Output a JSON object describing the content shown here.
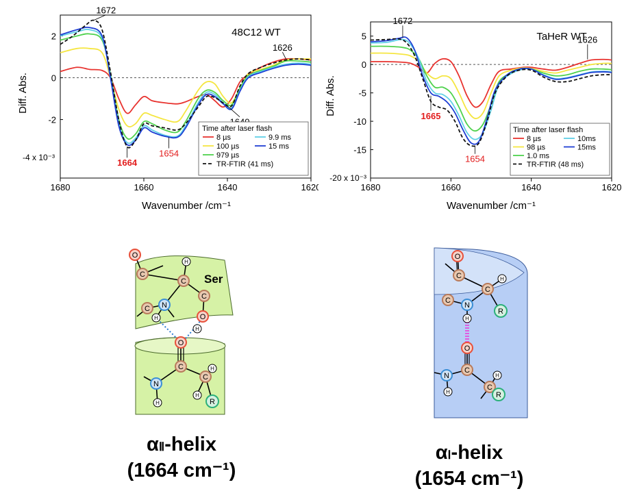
{
  "chart_data": [
    {
      "type": "line",
      "title": "48C12 WT",
      "xlabel": "Wavenumber /cm⁻¹",
      "ylabel": "Diff. Abs.",
      "xlim": [
        1680,
        1620
      ],
      "ylim": [
        -4.8,
        3.0
      ],
      "x_ticks": [
        1680,
        1660,
        1640,
        1620
      ],
      "y_ticks": [
        2,
        0,
        -2
      ],
      "y_tick_labels": [
        "2",
        "0",
        "-2"
      ],
      "y_scale_label": "-4 x 10⁻³",
      "zero_line": true,
      "legend_title": "Time after laser flash",
      "series": [
        {
          "name": "8 µs",
          "color": "#e8332f",
          "dash": "",
          "x": [
            1680,
            1676,
            1673,
            1670,
            1668,
            1666,
            1664,
            1662,
            1660,
            1658,
            1655,
            1652,
            1650,
            1647,
            1645,
            1643,
            1641,
            1639,
            1637,
            1635,
            1632,
            1629,
            1626,
            1623,
            1620
          ],
          "y": [
            0.3,
            0.5,
            0.4,
            0.35,
            0.0,
            -1.0,
            -1.7,
            -1.3,
            -0.9,
            -1.1,
            -1.2,
            -1.25,
            -1.15,
            -0.9,
            -0.8,
            -1.1,
            -1.4,
            -1.0,
            -0.2,
            0.15,
            0.5,
            0.75,
            0.9,
            0.9,
            0.85
          ]
        },
        {
          "name": "100 µs",
          "color": "#f5e641",
          "dash": "",
          "x": [
            1680,
            1676,
            1673,
            1670,
            1668,
            1666,
            1664,
            1662,
            1660,
            1658,
            1655,
            1652,
            1650,
            1647,
            1645,
            1643,
            1641,
            1639,
            1637,
            1635,
            1632,
            1629,
            1626,
            1623,
            1620
          ],
          "y": [
            1.2,
            1.4,
            1.4,
            1.2,
            0.0,
            -1.5,
            -2.3,
            -2.2,
            -1.7,
            -1.8,
            -2.0,
            -2.1,
            -1.6,
            -0.6,
            -0.2,
            -0.3,
            -0.9,
            -1.2,
            -0.5,
            0.2,
            0.4,
            0.6,
            0.85,
            0.9,
            0.9
          ]
        },
        {
          "name": "979 µs",
          "color": "#4fd24d",
          "dash": "",
          "x": [
            1680,
            1676,
            1673,
            1670,
            1668,
            1666,
            1664,
            1662,
            1660,
            1658,
            1655,
            1652,
            1650,
            1647,
            1645,
            1643,
            1641,
            1639,
            1637,
            1635,
            1632,
            1629,
            1626,
            1623,
            1620
          ],
          "y": [
            1.8,
            2.0,
            2.1,
            1.8,
            0.2,
            -2.0,
            -2.9,
            -2.7,
            -2.1,
            -2.2,
            -2.5,
            -2.6,
            -2.1,
            -1.0,
            -0.6,
            -0.7,
            -1.1,
            -1.3,
            -0.5,
            0.1,
            0.35,
            0.55,
            0.8,
            0.8,
            0.75
          ]
        },
        {
          "name": "9.9 ms",
          "color": "#5fd0e6",
          "dash": "",
          "x": [
            1680,
            1676,
            1673,
            1670,
            1668,
            1666,
            1664,
            1662,
            1660,
            1658,
            1655,
            1652,
            1650,
            1647,
            1645,
            1643,
            1641,
            1639,
            1637,
            1635,
            1632,
            1629,
            1626,
            1623,
            1620
          ],
          "y": [
            2.0,
            2.2,
            2.3,
            1.9,
            0.1,
            -2.2,
            -3.1,
            -2.9,
            -2.3,
            -2.5,
            -2.75,
            -2.8,
            -2.3,
            -1.2,
            -0.7,
            -0.8,
            -1.2,
            -1.45,
            -0.6,
            0.05,
            0.3,
            0.5,
            0.65,
            0.7,
            0.65
          ]
        },
        {
          "name": "15 ms",
          "color": "#1f3fd4",
          "dash": "",
          "x": [
            1680,
            1676,
            1673,
            1670,
            1668,
            1666,
            1664,
            1662,
            1660,
            1658,
            1655,
            1652,
            1650,
            1647,
            1645,
            1643,
            1641,
            1639,
            1637,
            1635,
            1632,
            1629,
            1626,
            1623,
            1620
          ],
          "y": [
            2.05,
            2.3,
            2.4,
            2.0,
            0.0,
            -2.3,
            -3.2,
            -3.0,
            -2.4,
            -2.6,
            -2.8,
            -2.85,
            -2.4,
            -1.3,
            -0.8,
            -0.9,
            -1.25,
            -1.5,
            -0.65,
            0.0,
            0.25,
            0.45,
            0.6,
            0.65,
            0.6
          ]
        },
        {
          "name": "TR-FTIR (41 ms)",
          "color": "#111111",
          "dash": "5,3",
          "x": [
            1680,
            1677,
            1674,
            1672,
            1670,
            1668,
            1666,
            1664,
            1662,
            1660,
            1658,
            1655,
            1652,
            1650,
            1647,
            1645,
            1643,
            1641,
            1639,
            1637,
            1635,
            1632,
            1629,
            1626,
            1623,
            1620
          ],
          "y": [
            1.6,
            2.0,
            2.5,
            2.75,
            2.3,
            0.3,
            -2.0,
            -3.3,
            -3.0,
            -2.2,
            -2.3,
            -2.4,
            -2.5,
            -2.2,
            -1.4,
            -0.9,
            -0.95,
            -1.2,
            -1.35,
            -0.4,
            0.2,
            0.5,
            0.7,
            0.85,
            0.9,
            0.85
          ]
        }
      ],
      "annotations": [
        {
          "text": "1672",
          "x": 1672,
          "y": 2.75,
          "color": "#000000",
          "bold": false
        },
        {
          "text": "1626",
          "x": 1626,
          "y": 0.9,
          "color": "#000000",
          "bold": false
        },
        {
          "text": "1640",
          "x": 1640,
          "y": -1.35,
          "color": "#000000",
          "bold": false
        },
        {
          "text": "1664",
          "x": 1664,
          "y": -3.3,
          "color": "#e21c1c",
          "bold": true
        },
        {
          "text": "1654",
          "x": 1654,
          "y": -2.85,
          "color": "#e21c1c",
          "bold": false
        }
      ]
    },
    {
      "type": "line",
      "title": "TaHeR WT",
      "xlabel": "Wavenumber /cm⁻¹",
      "ylabel": "Diff. Abs.",
      "xlim": [
        1680,
        1620
      ],
      "ylim": [
        -20,
        7.5
      ],
      "x_ticks": [
        1680,
        1660,
        1640,
        1620
      ],
      "y_ticks": [
        5,
        0,
        -5,
        -10,
        -15
      ],
      "y_tick_labels": [
        "5",
        "0",
        "-5",
        "-10",
        "-15"
      ],
      "y_scale_label": "-20 x 10⁻³",
      "zero_line": true,
      "legend_title": "Time after laser flash",
      "series": [
        {
          "name": "8 µs",
          "color": "#e8332f",
          "dash": "",
          "x": [
            1680,
            1676,
            1672,
            1670,
            1668,
            1666,
            1664,
            1662,
            1660,
            1658,
            1656,
            1654,
            1652,
            1650,
            1648,
            1645,
            1642,
            1640,
            1637,
            1634,
            1631,
            1628,
            1625,
            1622,
            1620
          ],
          "y": [
            0.5,
            0.5,
            0.4,
            0.2,
            -0.5,
            -1.5,
            0.2,
            1.0,
            0.5,
            -2.0,
            -5.5,
            -7.5,
            -6.5,
            -3.5,
            -1.2,
            -0.8,
            -0.5,
            -0.5,
            -0.8,
            -1.0,
            -0.5,
            0.2,
            0.8,
            0.9,
            0.8
          ]
        },
        {
          "name": "98 µs",
          "color": "#f5e641",
          "dash": "",
          "x": [
            1680,
            1676,
            1672,
            1670,
            1668,
            1666,
            1664,
            1662,
            1660,
            1658,
            1656,
            1654,
            1652,
            1650,
            1648,
            1645,
            1642,
            1640,
            1637,
            1634,
            1631,
            1628,
            1625,
            1622,
            1620
          ],
          "y": [
            2.0,
            2.0,
            1.8,
            1.5,
            0.5,
            -1.5,
            -2.5,
            -2.0,
            -2.5,
            -5.0,
            -8.0,
            -9.5,
            -8.5,
            -5.0,
            -2.0,
            -1.0,
            -0.6,
            -0.7,
            -1.2,
            -1.5,
            -1.0,
            -0.5,
            0.0,
            0.2,
            0.2
          ]
        },
        {
          "name": "1.0 ms",
          "color": "#4fd24d",
          "dash": "",
          "x": [
            1680,
            1676,
            1672,
            1670,
            1668,
            1666,
            1664,
            1662,
            1660,
            1658,
            1656,
            1654,
            1652,
            1650,
            1648,
            1645,
            1642,
            1640,
            1637,
            1634,
            1631,
            1628,
            1625,
            1622,
            1620
          ],
          "y": [
            3.2,
            3.2,
            3.0,
            2.5,
            1.0,
            -2.0,
            -4.0,
            -4.0,
            -5.0,
            -7.5,
            -10.5,
            -11.7,
            -10.5,
            -7.0,
            -3.0,
            -1.5,
            -0.8,
            -0.8,
            -1.5,
            -2.0,
            -1.8,
            -1.2,
            -0.8,
            -0.8,
            -0.9
          ]
        },
        {
          "name": "10ms",
          "color": "#5fd0e6",
          "dash": "",
          "x": [
            1680,
            1676,
            1672,
            1670,
            1668,
            1666,
            1664,
            1662,
            1660,
            1658,
            1656,
            1654,
            1652,
            1650,
            1648,
            1645,
            1642,
            1640,
            1637,
            1634,
            1631,
            1628,
            1625,
            1622,
            1620
          ],
          "y": [
            3.8,
            3.9,
            4.4,
            3.5,
            1.0,
            -3.0,
            -5.0,
            -5.3,
            -6.5,
            -9.0,
            -12.0,
            -13.2,
            -12.0,
            -8.0,
            -3.5,
            -1.6,
            -0.8,
            -0.8,
            -1.8,
            -2.5,
            -2.3,
            -1.8,
            -1.3,
            -1.2,
            -1.3
          ]
        },
        {
          "name": "15ms",
          "color": "#1f3fd4",
          "dash": "",
          "x": [
            1680,
            1676,
            1673,
            1671,
            1669,
            1667,
            1665,
            1663,
            1661,
            1659,
            1657,
            1655,
            1653,
            1651,
            1649,
            1646,
            1643,
            1640,
            1637,
            1634,
            1631,
            1628,
            1625,
            1622,
            1620
          ],
          "y": [
            4.0,
            4.2,
            4.6,
            4.7,
            2.5,
            -2.0,
            -5.0,
            -5.6,
            -6.6,
            -8.5,
            -11.5,
            -13.8,
            -13.5,
            -9.5,
            -4.5,
            -1.8,
            -0.8,
            -0.8,
            -1.9,
            -2.6,
            -2.4,
            -1.9,
            -1.4,
            -1.3,
            -1.4
          ]
        },
        {
          "name": "TR-FTIR (48 ms)",
          "color": "#111111",
          "dash": "5,3",
          "x": [
            1680,
            1676,
            1673,
            1671,
            1669,
            1667,
            1665,
            1663,
            1661,
            1659,
            1657,
            1655,
            1653,
            1651,
            1649,
            1646,
            1643,
            1640,
            1637,
            1634,
            1631,
            1628,
            1625,
            1622,
            1620
          ],
          "y": [
            4.3,
            4.4,
            4.5,
            3.8,
            1.5,
            -2.5,
            -6.5,
            -7.5,
            -8.0,
            -10.0,
            -13.0,
            -14.3,
            -13.8,
            -10.0,
            -5.0,
            -2.0,
            -1.0,
            -1.0,
            -2.2,
            -3.0,
            -3.0,
            -2.5,
            -2.0,
            -1.8,
            -1.8
          ]
        }
      ],
      "annotations": [
        {
          "text": "1672",
          "x": 1672,
          "y": 4.7,
          "color": "#000000",
          "bold": false
        },
        {
          "text": "1626",
          "x": 1626,
          "y": 0.9,
          "color": "#000000",
          "bold": false
        },
        {
          "text": "1665",
          "x": 1665,
          "y": -5.5,
          "color": "#e21c1c",
          "bold": true
        },
        {
          "text": "1654",
          "x": 1654,
          "y": -14.3,
          "color": "#e21c1c",
          "bold": false
        }
      ]
    }
  ],
  "diagrams": {
    "alpha2": {
      "atoms": {
        "O": "O",
        "C": "C",
        "N": "N",
        "H": "H",
        "R": "R"
      },
      "residue_label": "Ser",
      "caption_greek": "α",
      "caption_sub": "Ⅱ",
      "caption_rest": "-helix",
      "caption_freq": "(1664 cm⁻¹)"
    },
    "alpha1": {
      "atoms": {
        "O": "O",
        "C": "C",
        "N": "N",
        "H": "H",
        "R": "R"
      },
      "caption_greek": "α",
      "caption_sub": "Ⅰ",
      "caption_rest": "-helix",
      "caption_freq": "(1654 cm⁻¹)"
    }
  },
  "colors": {
    "helix_green": "#d6f2a6",
    "helix_blue": "#b7cef5",
    "atom_c": "#b87a5a",
    "atom_o": "#e8503a",
    "atom_n": "#3b8fd6",
    "atom_r": "#2bb07a"
  }
}
